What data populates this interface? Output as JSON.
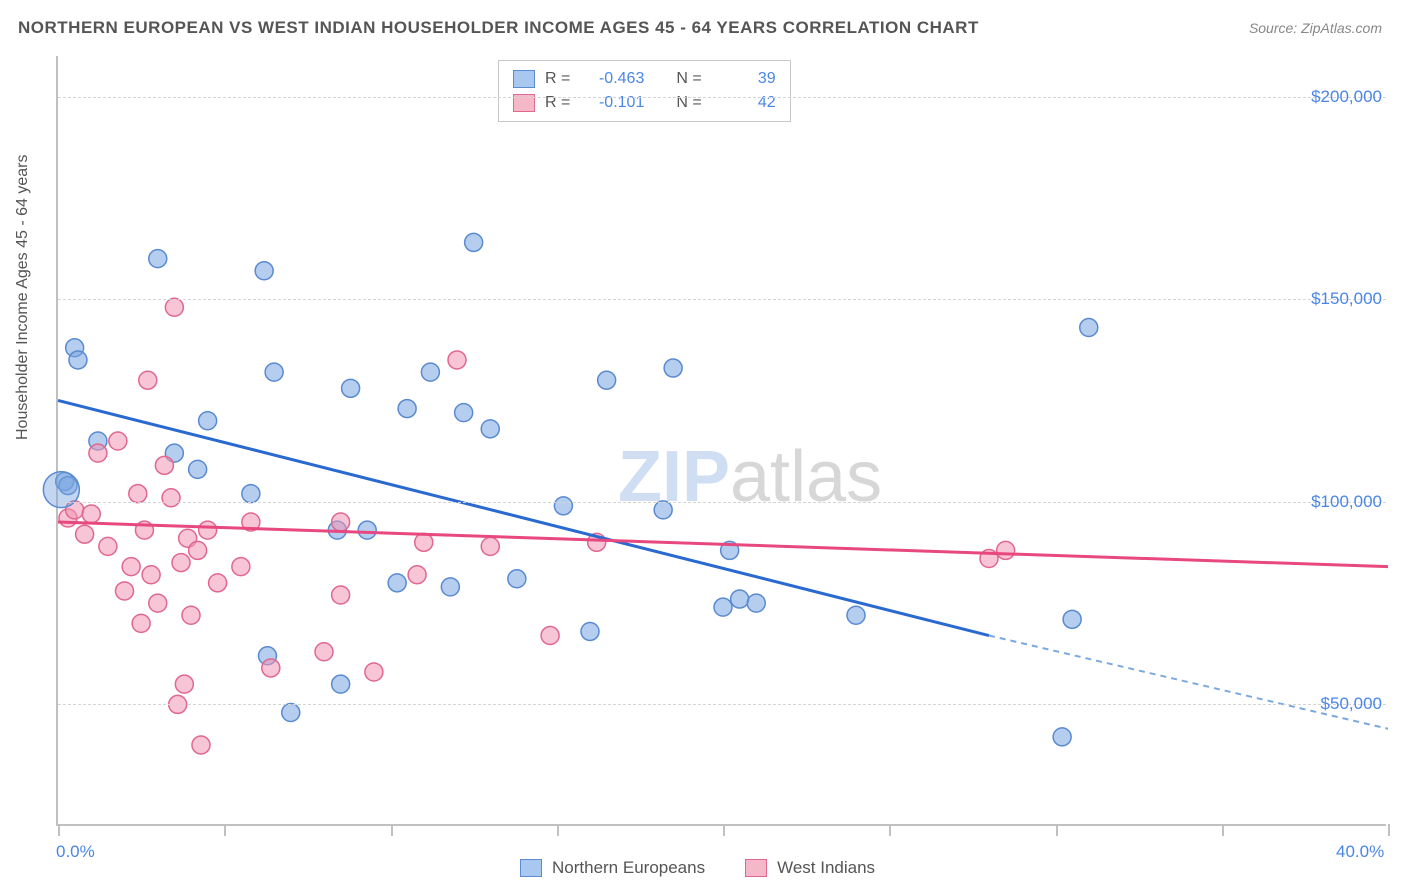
{
  "title": "NORTHERN EUROPEAN VS WEST INDIAN HOUSEHOLDER INCOME AGES 45 - 64 YEARS CORRELATION CHART",
  "source": "Source: ZipAtlas.com",
  "watermark_zip": "ZIP",
  "watermark_atlas": "atlas",
  "chart": {
    "type": "scatter",
    "background_color": "#ffffff",
    "grid_color": "#d5d5d5",
    "axis_color": "#c0c0c0",
    "label_color": "#555555",
    "value_color": "#4a86e8",
    "title_fontsize": 17,
    "label_fontsize": 16,
    "tick_fontsize": 17,
    "ylabel": "Householder Income Ages 45 - 64 years",
    "xlim": [
      0,
      40
    ],
    "ylim": [
      20000,
      210000
    ],
    "x_ticks": [
      0,
      5,
      10,
      15,
      20,
      25,
      30,
      35,
      40
    ],
    "x_tick_labels": {
      "0": "0.0%",
      "40": "40.0%"
    },
    "y_gridlines": [
      50000,
      100000,
      150000,
      200000
    ],
    "y_tick_labels": {
      "50000": "$50,000",
      "100000": "$100,000",
      "150000": "$150,000",
      "200000": "$200,000"
    },
    "marker_radius": 9,
    "marker_opacity": 0.55,
    "line_width": 3
  },
  "legend_top": {
    "r_label": "R =",
    "n_label": "N =",
    "rows": [
      {
        "swatch_fill": "#a8c8f0",
        "swatch_border": "#5a8ad0",
        "r": "-0.463",
        "n": "39"
      },
      {
        "swatch_fill": "#f5b8c8",
        "swatch_border": "#e06890",
        "r": "-0.101",
        "n": "42"
      }
    ]
  },
  "legend_bottom": {
    "items": [
      {
        "swatch_fill": "#a8c8f0",
        "swatch_border": "#5a8ad0",
        "label": "Northern Europeans"
      },
      {
        "swatch_fill": "#f5b8c8",
        "swatch_border": "#e06890",
        "label": "West Indians"
      }
    ]
  },
  "series": [
    {
      "name": "Northern Europeans",
      "color_fill": "rgba(120,165,225,0.55)",
      "color_stroke": "#5a8ad0",
      "points": [
        [
          0.2,
          105000
        ],
        [
          0.3,
          104000
        ],
        [
          0.5,
          138000
        ],
        [
          0.6,
          135000
        ],
        [
          1.2,
          115000
        ],
        [
          3.0,
          160000
        ],
        [
          3.5,
          112000
        ],
        [
          4.2,
          108000
        ],
        [
          4.5,
          120000
        ],
        [
          5.8,
          102000
        ],
        [
          6.2,
          157000
        ],
        [
          6.3,
          62000
        ],
        [
          6.5,
          132000
        ],
        [
          7.0,
          48000
        ],
        [
          8.4,
          93000
        ],
        [
          8.5,
          55000
        ],
        [
          8.8,
          128000
        ],
        [
          9.3,
          93000
        ],
        [
          10.2,
          80000
        ],
        [
          10.5,
          123000
        ],
        [
          11.2,
          132000
        ],
        [
          11.8,
          79000
        ],
        [
          12.2,
          122000
        ],
        [
          12.5,
          164000
        ],
        [
          13.0,
          118000
        ],
        [
          13.8,
          81000
        ],
        [
          15.2,
          99000
        ],
        [
          16.0,
          68000
        ],
        [
          16.5,
          130000
        ],
        [
          18.2,
          98000
        ],
        [
          18.5,
          133000
        ],
        [
          20.0,
          74000
        ],
        [
          20.2,
          88000
        ],
        [
          20.5,
          76000
        ],
        [
          21.0,
          75000
        ],
        [
          24.0,
          72000
        ],
        [
          30.2,
          42000
        ],
        [
          30.5,
          71000
        ],
        [
          31.0,
          143000
        ]
      ],
      "regression": {
        "x1": 0,
        "y1": 125000,
        "x2": 28,
        "y2": 67000,
        "ext_x2": 40,
        "ext_y2": 44000,
        "color": "#2a6ad0",
        "dash_color": "#7ba8e0"
      }
    },
    {
      "name": "West Indians",
      "color_fill": "rgba(240,150,180,0.55)",
      "color_stroke": "#e06890",
      "points": [
        [
          0.3,
          96000
        ],
        [
          0.5,
          98000
        ],
        [
          0.8,
          92000
        ],
        [
          1.0,
          97000
        ],
        [
          1.2,
          112000
        ],
        [
          1.5,
          89000
        ],
        [
          1.8,
          115000
        ],
        [
          2.0,
          78000
        ],
        [
          2.2,
          84000
        ],
        [
          2.4,
          102000
        ],
        [
          2.5,
          70000
        ],
        [
          2.6,
          93000
        ],
        [
          2.7,
          130000
        ],
        [
          2.8,
          82000
        ],
        [
          3.0,
          75000
        ],
        [
          3.2,
          109000
        ],
        [
          3.4,
          101000
        ],
        [
          3.5,
          148000
        ],
        [
          3.6,
          50000
        ],
        [
          3.7,
          85000
        ],
        [
          3.8,
          55000
        ],
        [
          3.9,
          91000
        ],
        [
          4.0,
          72000
        ],
        [
          4.2,
          88000
        ],
        [
          4.3,
          40000
        ],
        [
          4.5,
          93000
        ],
        [
          4.8,
          80000
        ],
        [
          5.5,
          84000
        ],
        [
          5.8,
          95000
        ],
        [
          6.4,
          59000
        ],
        [
          8.0,
          63000
        ],
        [
          8.5,
          77000
        ],
        [
          8.5,
          95000
        ],
        [
          9.5,
          58000
        ],
        [
          10.8,
          82000
        ],
        [
          11.0,
          90000
        ],
        [
          12.0,
          135000
        ],
        [
          13.0,
          89000
        ],
        [
          14.8,
          67000
        ],
        [
          16.2,
          90000
        ],
        [
          28.0,
          86000
        ],
        [
          28.5,
          88000
        ]
      ],
      "regression": {
        "x1": 0,
        "y1": 95000,
        "x2": 40,
        "y2": 84000,
        "color": "#e84880"
      }
    }
  ]
}
